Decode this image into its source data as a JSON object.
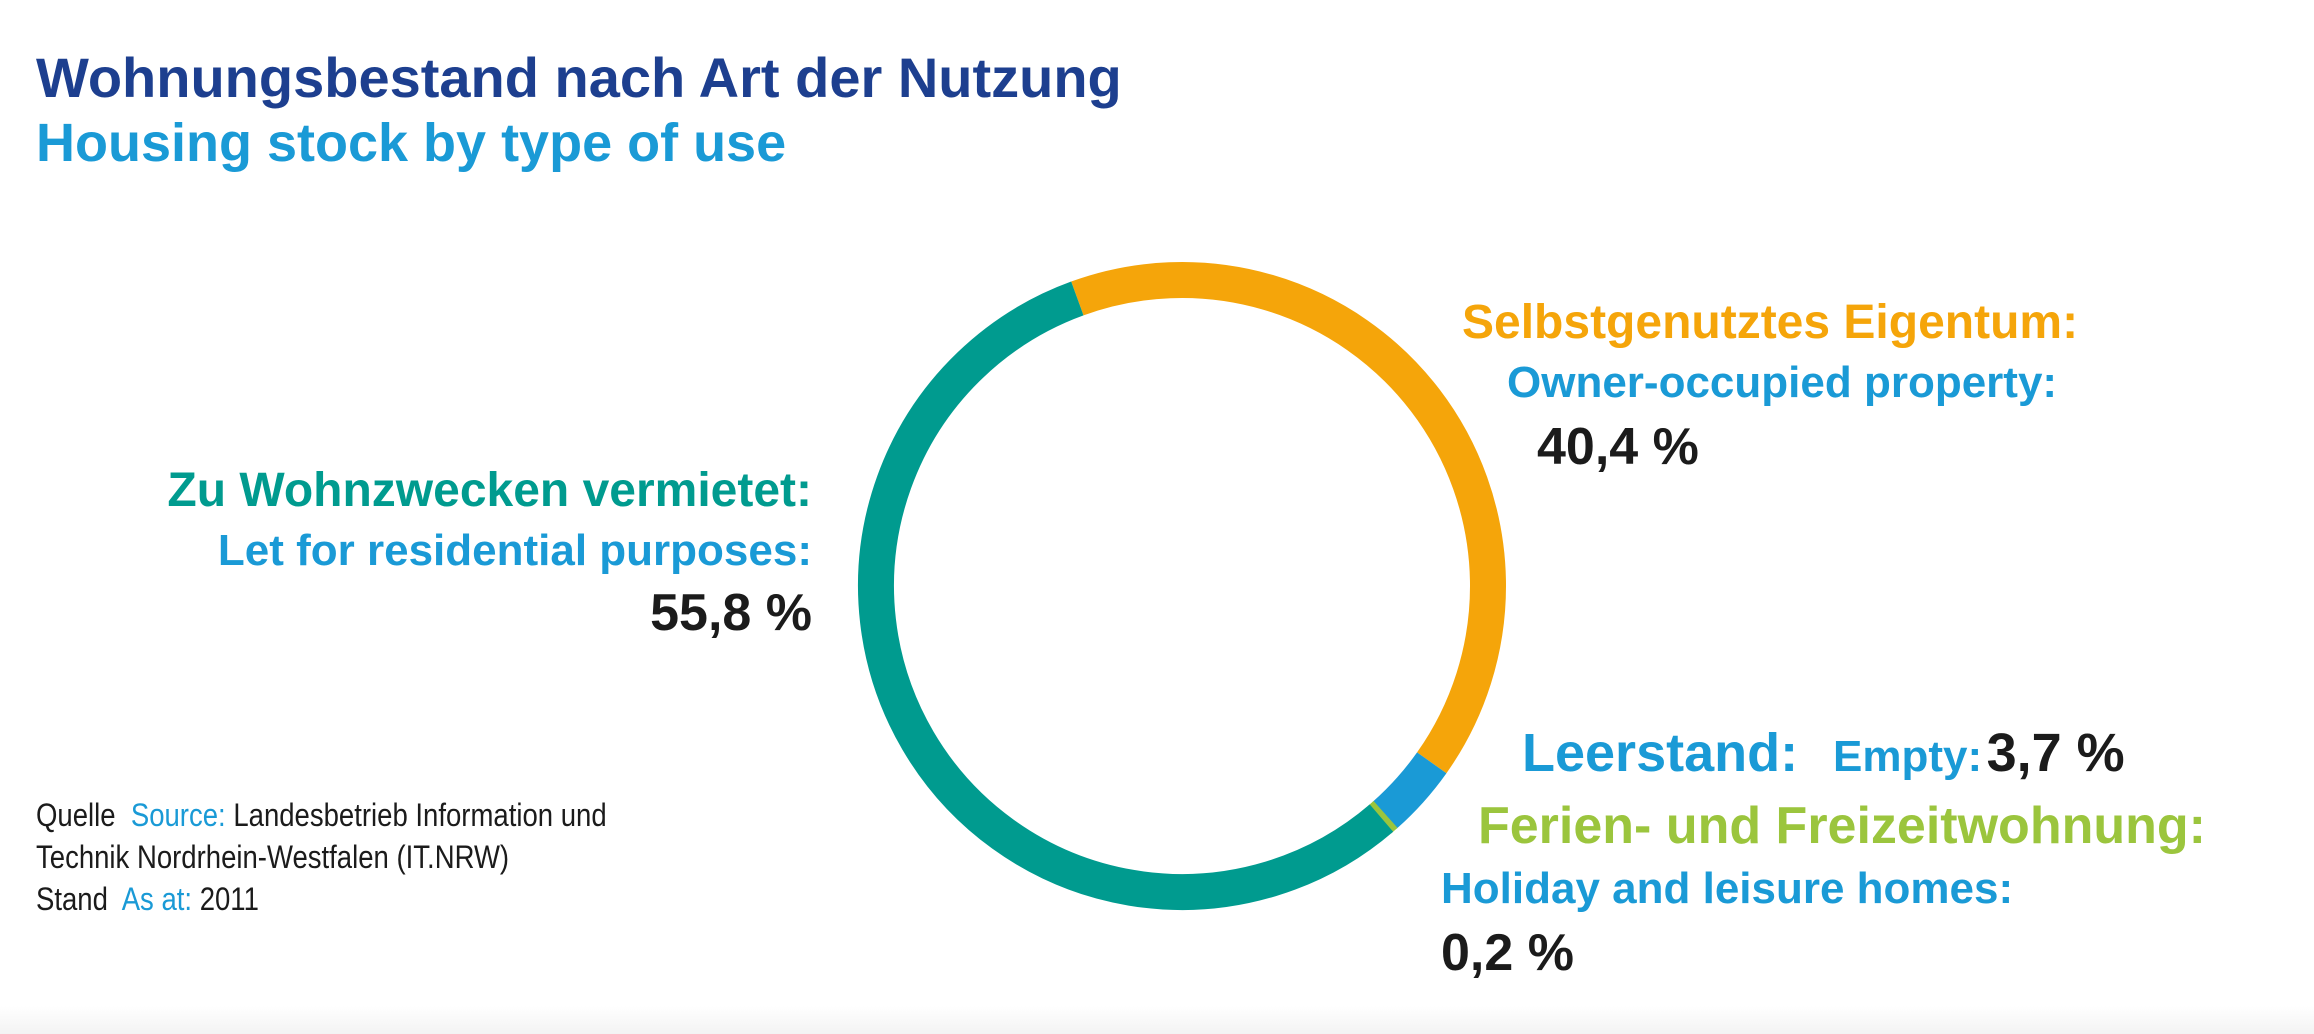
{
  "title_de": "Wohnungsbestand nach Art der Nutzung",
  "title_en": "Housing stock by type of use",
  "colors": {
    "title_de": "#1d3f8f",
    "title_en": "#1a9ad6",
    "let": "#009b8f",
    "owner": "#f5a50a",
    "empty": "#1a9ad6",
    "holiday": "#9bc53d",
    "value": "#1b1b1b"
  },
  "chart_data": {
    "type": "pie",
    "style": "donut",
    "slices": [
      {
        "label_de": "Selbstgenutztes Eigentum:",
        "label_en": "Owner-occupied property:",
        "value": 40.4,
        "value_label": "40,4 %",
        "color": "#f5a50a"
      },
      {
        "label_de": "Leerstand:",
        "label_en": "Empty:",
        "value": 3.7,
        "value_label": "3,7 %",
        "color": "#1a9ad6"
      },
      {
        "label_de": "Ferien- und Freizeitwohnung:",
        "label_en": "Holiday and leisure homes:",
        "value": 0.2,
        "value_label": "0,2 %",
        "color": "#9bc53d"
      },
      {
        "label_de": "Zu Wohnzwecken vermietet:",
        "label_en": "Let for residential purposes:",
        "value": 55.8,
        "value_label": "55,8 %",
        "color": "#009b8f"
      }
    ]
  },
  "source": {
    "quelle": "Quelle",
    "source_en": "Source:",
    "source_text_line1": "Landesbetrieb Information und",
    "source_text_line2": "Technik Nordrhein-Westfalen (IT.NRW)",
    "stand": "Stand",
    "as_at_en": "As at:",
    "year": "2011"
  }
}
